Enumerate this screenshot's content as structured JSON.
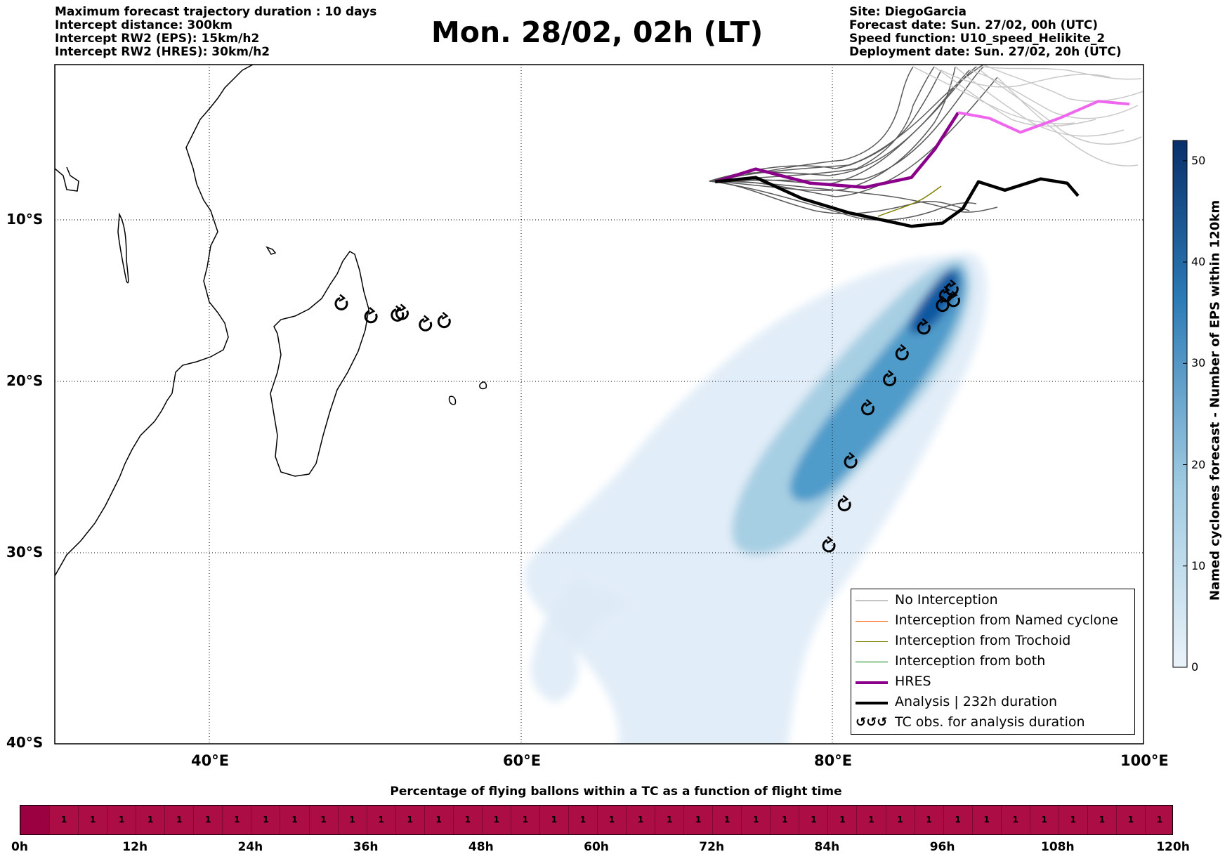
{
  "header_left": [
    "Maximum forecast trajectory duration : 10 days",
    "Intercept distance: 300km",
    "Intercept RW2 (EPS):  15km/h2",
    "Intercept RW2 (HRES): 30km/h2"
  ],
  "title": "Mon. 28/02, 02h (LT)",
  "header_right": [
    "Site: DiegoGarcia",
    "Forecast date: Sun. 27/02, 00h (UTC)",
    "Speed function: U10_speed_Helikite_2",
    "Deployment date: Sun. 27/02, 20h (UTC)"
  ],
  "map": {
    "lon_range": [
      30,
      100
    ],
    "lat_range": [
      -40,
      1
    ],
    "lat_labels": [
      {
        "label": "10°S",
        "lat": -10
      },
      {
        "label": "20°S",
        "lat": -20
      },
      {
        "label": "30°S",
        "lat": -30
      },
      {
        "label": "40°S",
        "lat": -40
      }
    ],
    "lon_labels": [
      {
        "label": "40°E",
        "lon": 40
      },
      {
        "label": "60°E",
        "lon": 60
      },
      {
        "label": "80°E",
        "lon": 80
      },
      {
        "label": "100°E",
        "lon": 100
      }
    ],
    "grid": true,
    "site": {
      "name": "DiegoGarcia",
      "lon": 72.4,
      "lat": -7.3
    },
    "analysis_track": [
      [
        72.4,
        -7.3
      ],
      [
        75,
        -7
      ],
      [
        78,
        -8.5
      ],
      [
        81,
        -9.5
      ],
      [
        85,
        -10.4
      ],
      [
        87,
        -10.2
      ],
      [
        88.3,
        -9.2
      ],
      [
        89.3,
        -7.3
      ],
      [
        91,
        -7.9
      ],
      [
        93.3,
        -7.1
      ],
      [
        95,
        -7.4
      ],
      [
        95.7,
        -8.3
      ]
    ],
    "hres_track": [
      [
        72.4,
        -7.3
      ],
      [
        75,
        -6.4
      ],
      [
        78.5,
        -7.4
      ],
      [
        82,
        -7.7
      ],
      [
        85,
        -7
      ],
      [
        86.5,
        -5
      ],
      [
        88,
        -2.4
      ]
    ],
    "hres_continuation": [
      [
        88,
        -2.4
      ],
      [
        90,
        -2.8
      ],
      [
        92,
        -3.8
      ],
      [
        94.5,
        -2.8
      ],
      [
        97,
        -1.6
      ],
      [
        99,
        -1.8
      ]
    ],
    "tc_obs": [
      [
        48.4,
        -15.2
      ],
      [
        50.3,
        -16
      ],
      [
        52,
        -15.9
      ],
      [
        52.3,
        -15.8
      ],
      [
        53.8,
        -16.5
      ],
      [
        55,
        -16.3
      ],
      [
        79.7,
        -29.6
      ],
      [
        80.7,
        -27.2
      ],
      [
        81.1,
        -24.7
      ],
      [
        82.2,
        -21.6
      ],
      [
        83.6,
        -19.9
      ],
      [
        84.4,
        -18.3
      ],
      [
        85.8,
        -16.7
      ],
      [
        87,
        -15.3
      ],
      [
        87.7,
        -15
      ],
      [
        87.2,
        -14.7
      ],
      [
        87.6,
        -14.3
      ]
    ],
    "density_color": "#2c7bb6"
  },
  "legend": [
    {
      "label": "No Interception",
      "color": "#808080",
      "width": 1.5
    },
    {
      "label": "Interception from Named cyclone",
      "color": "#ff5500",
      "width": 1.5
    },
    {
      "label": "Interception from Trochoid",
      "color": "#808000",
      "width": 1.5
    },
    {
      "label": "Interception from both",
      "color": "#008000",
      "width": 1.5
    },
    {
      "label": "HRES",
      "color": "#8b008b",
      "width": 4
    },
    {
      "label": "Analysis | 232h duration",
      "color": "#000000",
      "width": 4
    },
    {
      "label": "TC obs. for analysis duration",
      "color": "#000000",
      "width": 0,
      "symbol": "↺↺↺"
    }
  ],
  "colorbar": {
    "label": "Named cyclones forecast - Number of EPS within 120km",
    "ticks": [
      "0",
      "10",
      "20",
      "30",
      "40",
      "50"
    ],
    "min": 0,
    "max": 52,
    "color_low": "#e3eef8",
    "color_high": "#08306b"
  },
  "pct": {
    "title": "Percentage of flying ballons within a TC as a function of flight time",
    "cells": 40,
    "values": [
      "",
      "1",
      "1",
      "1",
      "1",
      "1",
      "1",
      "1",
      "1",
      "1",
      "1",
      "1",
      "1",
      "1",
      "1",
      "1",
      "1",
      "1",
      "1",
      "1",
      "1",
      "1",
      "1",
      "1",
      "1",
      "1",
      "1",
      "1",
      "1",
      "1",
      "1",
      "1",
      "1",
      "1",
      "1",
      "1",
      "1",
      "1",
      "1",
      "1"
    ],
    "ticks": [
      "0h",
      "12h",
      "24h",
      "36h",
      "48h",
      "60h",
      "72h",
      "84h",
      "96h",
      "108h",
      "120h"
    ],
    "bar_color": "#ab0d44",
    "first_cell_color": "#9b0040"
  }
}
